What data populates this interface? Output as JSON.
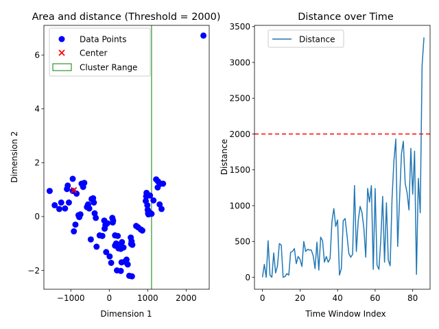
{
  "chart_data": [
    {
      "type": "scatter",
      "title": "Area and distance (Threshold = 2000)",
      "xlabel": "Dimension 1",
      "ylabel": "Dimension 2",
      "xlim": [
        -1700,
        2600
      ],
      "ylim": [
        -2.7,
        7.1
      ],
      "xticks": [
        -1000,
        0,
        1000,
        2000
      ],
      "xtick_labels": [
        "−1000",
        "0",
        "1000",
        "2000"
      ],
      "yticks": [
        -2,
        0,
        2,
        4,
        6
      ],
      "ytick_labels": [
        "−2",
        "0",
        "2",
        "4",
        "6"
      ],
      "grid": false,
      "legend_position": "upper-left",
      "legend": [
        {
          "label": "Data Points",
          "marker": "circle",
          "color": "#0000ff"
        },
        {
          "label": "Center",
          "marker": "x",
          "color": "#ff0000"
        },
        {
          "label": "Cluster Range",
          "marker": "rect-outline",
          "color": "#008000"
        }
      ],
      "series": [
        {
          "name": "Data Points",
          "color": "#0000ff",
          "points": [
            [
              -1550,
              0.95
            ],
            [
              -1420,
              0.42
            ],
            [
              -1300,
              0.28
            ],
            [
              -1250,
              0.52
            ],
            [
              -1150,
              0.3
            ],
            [
              -1100,
              1.02
            ],
            [
              -1080,
              1.15
            ],
            [
              -1050,
              0.52
            ],
            [
              -950,
              1.4
            ],
            [
              -950,
              0.95
            ],
            [
              -920,
              -0.55
            ],
            [
              -880,
              -0.3
            ],
            [
              -850,
              0.85
            ],
            [
              -800,
              0.05
            ],
            [
              -780,
              -0.02
            ],
            [
              -750,
              0.08
            ],
            [
              -720,
              1.22
            ],
            [
              -680,
              1.1
            ],
            [
              -650,
              1.25
            ],
            [
              -580,
              0.35
            ],
            [
              -560,
              0.42
            ],
            [
              -550,
              0.45
            ],
            [
              -520,
              0.3
            ],
            [
              -480,
              -0.85
            ],
            [
              -460,
              0.65
            ],
            [
              -420,
              0.68
            ],
            [
              -400,
              0.52
            ],
            [
              -380,
              0.12
            ],
            [
              -350,
              -0.05
            ],
            [
              -330,
              -1.12
            ],
            [
              -250,
              -0.7
            ],
            [
              -180,
              -0.72
            ],
            [
              -130,
              -0.15
            ],
            [
              -120,
              -0.45
            ],
            [
              -100,
              -0.32
            ],
            [
              -80,
              -1.32
            ],
            [
              -50,
              -0.25
            ],
            [
              10,
              -1.48
            ],
            [
              50,
              -1.72
            ],
            [
              80,
              -0.05
            ],
            [
              90,
              -0.22
            ],
            [
              100,
              -0.15
            ],
            [
              150,
              -0.7
            ],
            [
              150,
              -1.08
            ],
            [
              180,
              -1.0
            ],
            [
              200,
              -2.0
            ],
            [
              220,
              -0.72
            ],
            [
              240,
              -1.18
            ],
            [
              280,
              -1.05
            ],
            [
              300,
              -2.02
            ],
            [
              300,
              -1.2
            ],
            [
              320,
              -1.7
            ],
            [
              330,
              -0.95
            ],
            [
              370,
              -1.15
            ],
            [
              400,
              -1.68
            ],
            [
              450,
              -1.6
            ],
            [
              480,
              -1.78
            ],
            [
              520,
              -2.2
            ],
            [
              560,
              -0.78
            ],
            [
              570,
              -1.02
            ],
            [
              580,
              -0.92
            ],
            [
              590,
              -2.22
            ],
            [
              600,
              -1.05
            ],
            [
              700,
              -0.35
            ],
            [
              750,
              -0.4
            ],
            [
              820,
              -0.48
            ],
            [
              860,
              -0.52
            ],
            [
              950,
              0.58
            ],
            [
              960,
              0.75
            ],
            [
              970,
              0.88
            ],
            [
              990,
              0.42
            ],
            [
              1000,
              0.25
            ],
            [
              1010,
              0.12
            ],
            [
              1020,
              0.08
            ],
            [
              1050,
              0.15
            ],
            [
              1060,
              0.78
            ],
            [
              1080,
              0.12
            ],
            [
              1100,
              0.1
            ],
            [
              1150,
              0.6
            ],
            [
              1220,
              1.38
            ],
            [
              1260,
              1.08
            ],
            [
              1270,
              1.3
            ],
            [
              1310,
              0.45
            ],
            [
              1340,
              1.22
            ],
            [
              1360,
              0.28
            ],
            [
              1400,
              1.22
            ],
            [
              2450,
              6.72
            ]
          ]
        },
        {
          "name": "Center",
          "color": "#ff0000",
          "points": [
            [
              -920,
              0.98
            ]
          ]
        }
      ],
      "cluster_range": {
        "label": "Cluster Range",
        "x_max": 1100,
        "color": "#008000"
      }
    },
    {
      "type": "line",
      "title": "Distance over Time",
      "xlabel": "Time Window Index",
      "ylabel": "Distance",
      "xlim": [
        -4.25,
        89.25
      ],
      "ylim": [
        -167.5,
        3517.5
      ],
      "xticks": [
        0,
        20,
        40,
        60,
        80
      ],
      "xtick_labels": [
        "0",
        "20",
        "40",
        "60",
        "80"
      ],
      "yticks": [
        0,
        500,
        1000,
        1500,
        2000,
        2500,
        3000,
        3500
      ],
      "ytick_labels": [
        "0",
        "500",
        "1000",
        "1500",
        "2000",
        "2500",
        "3000",
        "3500"
      ],
      "grid": false,
      "legend_position": "upper-left",
      "threshold": {
        "value": 2000,
        "color": "#ff0000",
        "style": "dashed"
      },
      "series": [
        {
          "name": "Distance",
          "color": "#1f77b4",
          "x": [
            0,
            1,
            2,
            3,
            4,
            5,
            6,
            7,
            8,
            9,
            10,
            11,
            12,
            13,
            14,
            15,
            16,
            17,
            18,
            19,
            20,
            21,
            22,
            23,
            24,
            25,
            26,
            27,
            28,
            29,
            30,
            31,
            32,
            33,
            34,
            35,
            36,
            37,
            38,
            39,
            40,
            41,
            42,
            43,
            44,
            45,
            46,
            47,
            48,
            49,
            50,
            51,
            52,
            53,
            54,
            55,
            56,
            57,
            58,
            59,
            60,
            61,
            62,
            63,
            64,
            65,
            66,
            67,
            68,
            69,
            70,
            71,
            72,
            73,
            74,
            75,
            76,
            77,
            78,
            79,
            80,
            81,
            82,
            83,
            84,
            85
          ],
          "values": [
            0,
            180,
            0,
            510,
            30,
            0,
            340,
            60,
            160,
            470,
            450,
            0,
            10,
            50,
            30,
            350,
            360,
            400,
            190,
            290,
            250,
            150,
            500,
            360,
            390,
            380,
            380,
            300,
            120,
            490,
            100,
            560,
            510,
            210,
            290,
            210,
            260,
            780,
            960,
            710,
            800,
            30,
            120,
            790,
            820,
            590,
            330,
            280,
            320,
            1280,
            360,
            790,
            990,
            900,
            680,
            280,
            1240,
            1050,
            1280,
            110,
            1240,
            170,
            110,
            520,
            1130,
            210,
            1040,
            240,
            160,
            1100,
            1630,
            1930,
            430,
            1090,
            1720,
            1900,
            1310,
            1180,
            940,
            1800,
            1160,
            1760,
            40,
            1380,
            900,
            2960
          ]
        }
      ],
      "extra_tail": {
        "x": [
          85,
          86
        ],
        "values": [
          2960,
          3350
        ]
      }
    }
  ]
}
